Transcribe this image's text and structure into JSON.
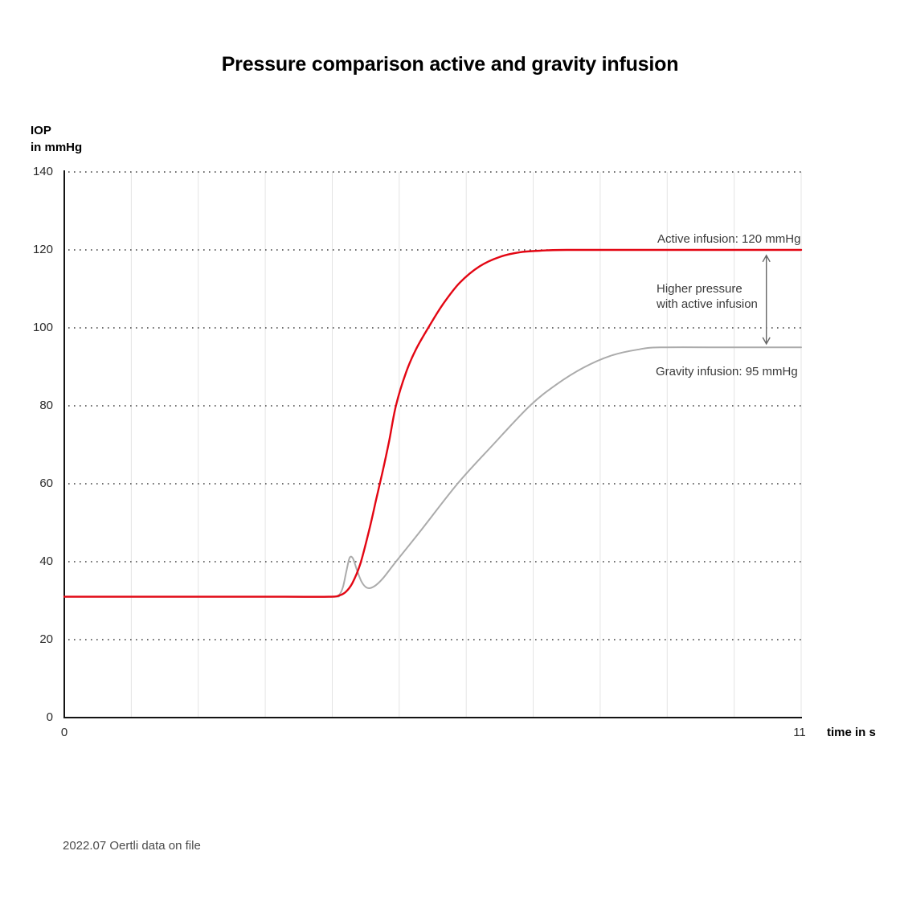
{
  "chart_data": {
    "type": "line",
    "title": "Pressure comparison active and gravity infusion",
    "xlabel": "time in s",
    "ylabel": "IOP in mmHg",
    "xlim": [
      0,
      11
    ],
    "ylim": [
      0,
      140
    ],
    "x_ticks_labeled": [
      0,
      11
    ],
    "y_ticks": [
      0,
      20,
      40,
      60,
      80,
      100,
      120,
      140
    ],
    "grid": {
      "vertical_solid_every_s": 1,
      "horizontal_dotted_every_mmHg": 20,
      "legend_position": "none"
    },
    "series": [
      {
        "name": "Gravity infusion",
        "color": "#ababab",
        "plateau_label": "Gravity infusion: 95 mmHg",
        "baseline_mmHg": 31,
        "plateau_mmHg": 95,
        "points": [
          [
            0,
            31
          ],
          [
            2.2,
            31
          ],
          [
            3.3,
            31
          ],
          [
            4.02,
            31
          ],
          [
            4.1,
            31.4
          ],
          [
            4.16,
            33.5
          ],
          [
            4.21,
            37.5
          ],
          [
            4.26,
            41
          ],
          [
            4.31,
            40.8
          ],
          [
            4.37,
            37.8
          ],
          [
            4.44,
            34.8
          ],
          [
            4.52,
            33.3
          ],
          [
            4.62,
            33.6
          ],
          [
            4.75,
            35.6
          ],
          [
            4.95,
            40
          ],
          [
            5.3,
            47.5
          ],
          [
            5.87,
            60
          ],
          [
            6.4,
            70
          ],
          [
            6.95,
            80
          ],
          [
            7.35,
            85.5
          ],
          [
            7.75,
            89.8
          ],
          [
            8.15,
            92.8
          ],
          [
            8.55,
            94.4
          ],
          [
            8.9,
            95
          ],
          [
            10,
            95
          ],
          [
            11,
            95
          ]
        ]
      },
      {
        "name": "Active infusion",
        "color": "#e30613",
        "plateau_label": "Active infusion: 120 mmHg",
        "baseline_mmHg": 31,
        "plateau_mmHg": 120,
        "points": [
          [
            0,
            31
          ],
          [
            2.2,
            31
          ],
          [
            3.3,
            31
          ],
          [
            3.95,
            31
          ],
          [
            4.1,
            31.3
          ],
          [
            4.2,
            32.2
          ],
          [
            4.3,
            34.5
          ],
          [
            4.42,
            39.5
          ],
          [
            4.55,
            48
          ],
          [
            4.65,
            55.5
          ],
          [
            4.75,
            63
          ],
          [
            4.85,
            71
          ],
          [
            4.95,
            80
          ],
          [
            5.1,
            88.5
          ],
          [
            5.25,
            94.5
          ],
          [
            5.45,
            100.5
          ],
          [
            5.65,
            106
          ],
          [
            5.9,
            111.5
          ],
          [
            6.2,
            115.8
          ],
          [
            6.5,
            118.2
          ],
          [
            6.8,
            119.4
          ],
          [
            7.1,
            119.8
          ],
          [
            7.5,
            120
          ],
          [
            9,
            120
          ],
          [
            11,
            120
          ]
        ]
      }
    ]
  },
  "axes": {
    "y_title_line1": "IOP",
    "y_title_line2": "in mmHg",
    "x_title": "time in s",
    "x_first_tick": "0",
    "x_last_tick": "11"
  },
  "annotations": {
    "active_label": "Active infusion: 120 mmHg",
    "gravity_label": "Gravity infusion: 95 mmHg",
    "note_line1": "Higher pressure",
    "note_line2": "with active infusion",
    "arrow": {
      "x_time": 10.48,
      "from_mmHg": 118.6,
      "to_mmHg": 95.9
    }
  },
  "footer": {
    "note": "2022.07 Oertli data on file"
  },
  "colors": {
    "active_curve": "#e30613",
    "gravity_curve": "#ababab",
    "arrow": "#666666",
    "grid_vertical": "#e4e4e4",
    "grid_dotted": "#3f3f3f",
    "axis": "#141414",
    "annotation_text": "#3a3a3a",
    "footer_text": "#4b4b4b"
  }
}
